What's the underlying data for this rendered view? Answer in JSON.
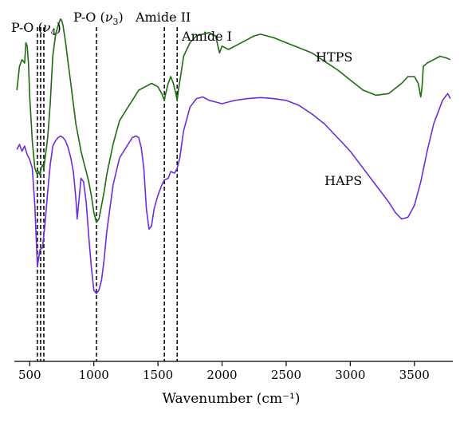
{
  "chart_data": {
    "type": "line",
    "title": "",
    "xlabel": "Wavenumber (cm⁻¹)",
    "ylabel": "",
    "xlim": [
      380,
      3800
    ],
    "xticks": [
      500,
      1000,
      1500,
      2000,
      2500,
      3000,
      3500
    ],
    "ylim": [
      0,
      100
    ],
    "grid": false,
    "legend": "none",
    "annotations": [
      {
        "text": "P-O (",
        "italic": "ν",
        "sub": "4",
        "close": ")",
        "x_lines": [
          560,
          585,
          610
        ]
      },
      {
        "text": "P-O (",
        "italic": "ν",
        "sub": "3",
        "close": ")",
        "x_lines": [
          1020
        ]
      },
      {
        "text": "Amide II",
        "x_lines": [
          1550
        ]
      },
      {
        "text": "Amide I",
        "x_lines": [
          1650
        ]
      }
    ],
    "series": [
      {
        "name": "HTPS",
        "color": "#1e6b12",
        "x": [
          400,
          420,
          440,
          460,
          470,
          480,
          490,
          500,
          520,
          540,
          560,
          570,
          580,
          590,
          600,
          610,
          620,
          640,
          660,
          680,
          700,
          720,
          740,
          750,
          760,
          780,
          800,
          820,
          840,
          860,
          880,
          900,
          920,
          940,
          960,
          980,
          1000,
          1020,
          1040,
          1060,
          1080,
          1100,
          1150,
          1200,
          1250,
          1300,
          1350,
          1400,
          1450,
          1500,
          1530,
          1550,
          1560,
          1580,
          1600,
          1620,
          1640,
          1650,
          1660,
          1680,
          1700,
          1750,
          1800,
          1850,
          1900,
          1950,
          1980,
          2000,
          2050,
          2100,
          2200,
          2250,
          2300,
          2350,
          2400,
          2500,
          2600,
          2700,
          2800,
          2900,
          3000,
          3100,
          3200,
          3300,
          3400,
          3450,
          3500,
          3530,
          3550,
          3560,
          3570,
          3600,
          3650,
          3700,
          3750,
          3780
        ],
        "values": [
          80.0,
          87.0,
          89.0,
          88.0,
          94.0,
          93.0,
          88.0,
          78.0,
          65.0,
          57.0,
          55.0,
          56.0,
          55.0,
          57.0,
          58.0,
          57.0,
          60.0,
          66.0,
          76.0,
          90.0,
          96.0,
          99.0,
          101.0,
          100.5,
          99.0,
          94.0,
          88.0,
          82.0,
          76.0,
          70.0,
          66.0,
          62.0,
          59.0,
          56.0,
          53.0,
          49.0,
          44.0,
          41.0,
          42.0,
          46.0,
          50.0,
          55.0,
          64.0,
          71.0,
          74.0,
          77.0,
          80.0,
          81.0,
          82.0,
          81.0,
          79.0,
          77.0,
          79.0,
          82.0,
          84.0,
          82.0,
          79.0,
          77.0,
          80.0,
          85.0,
          90.0,
          94.0,
          96.0,
          96.5,
          97.0,
          96.0,
          91.0,
          93.0,
          92.0,
          93.0,
          95.0,
          96.0,
          96.5,
          96.0,
          95.5,
          94.0,
          92.5,
          91.0,
          88.5,
          86.0,
          83.0,
          80.0,
          78.5,
          79.0,
          82.0,
          84.0,
          84.0,
          82.0,
          78.0,
          81.0,
          87.0,
          88.0,
          89.0,
          90.0,
          89.5,
          89.0
        ]
      },
      {
        "name": "HAPS",
        "color": "#6a2ddb",
        "x": [
          400,
          420,
          440,
          460,
          480,
          500,
          520,
          540,
          560,
          580,
          600,
          620,
          640,
          660,
          680,
          700,
          720,
          740,
          760,
          780,
          800,
          820,
          840,
          860,
          870,
          880,
          900,
          920,
          940,
          960,
          980,
          1000,
          1020,
          1040,
          1060,
          1080,
          1100,
          1150,
          1200,
          1250,
          1300,
          1330,
          1350,
          1370,
          1390,
          1410,
          1430,
          1450,
          1470,
          1500,
          1530,
          1550,
          1580,
          1600,
          1630,
          1650,
          1670,
          1700,
          1750,
          1800,
          1850,
          1900,
          1950,
          2000,
          2050,
          2100,
          2200,
          2300,
          2400,
          2500,
          2600,
          2700,
          2800,
          2900,
          3000,
          3100,
          3200,
          3300,
          3350,
          3400,
          3450,
          3500,
          3550,
          3600,
          3650,
          3700,
          3720,
          3740,
          3760,
          3780
        ],
        "values": [
          62.5,
          64.0,
          62.0,
          63.5,
          61.0,
          59.5,
          57.0,
          46.0,
          28.0,
          33.0,
          33.5,
          41.0,
          50.0,
          58.0,
          63.5,
          65.0,
          66.0,
          66.5,
          66.0,
          65.0,
          63.0,
          60.0,
          56.0,
          48.0,
          42.0,
          46.0,
          54.0,
          53.0,
          47.0,
          37.0,
          28.0,
          21.0,
          20.0,
          21.0,
          24.0,
          30.0,
          38.0,
          52.0,
          60.0,
          63.0,
          66.0,
          66.5,
          66.0,
          63.0,
          57.0,
          45.0,
          39.0,
          40.0,
          45.0,
          49.0,
          52.0,
          53.5,
          54.0,
          56.0,
          55.5,
          57.0,
          60.0,
          68.0,
          75.0,
          77.5,
          78.0,
          77.0,
          76.5,
          76.0,
          76.5,
          77.0,
          77.5,
          77.8,
          77.5,
          77.0,
          75.5,
          73.0,
          70.0,
          66.0,
          62.0,
          57.0,
          52.0,
          47.0,
          44.0,
          42.0,
          42.5,
          46.0,
          53.0,
          62.0,
          70.0,
          75.0,
          77.0,
          78.0,
          79.0,
          77.5
        ]
      }
    ]
  }
}
